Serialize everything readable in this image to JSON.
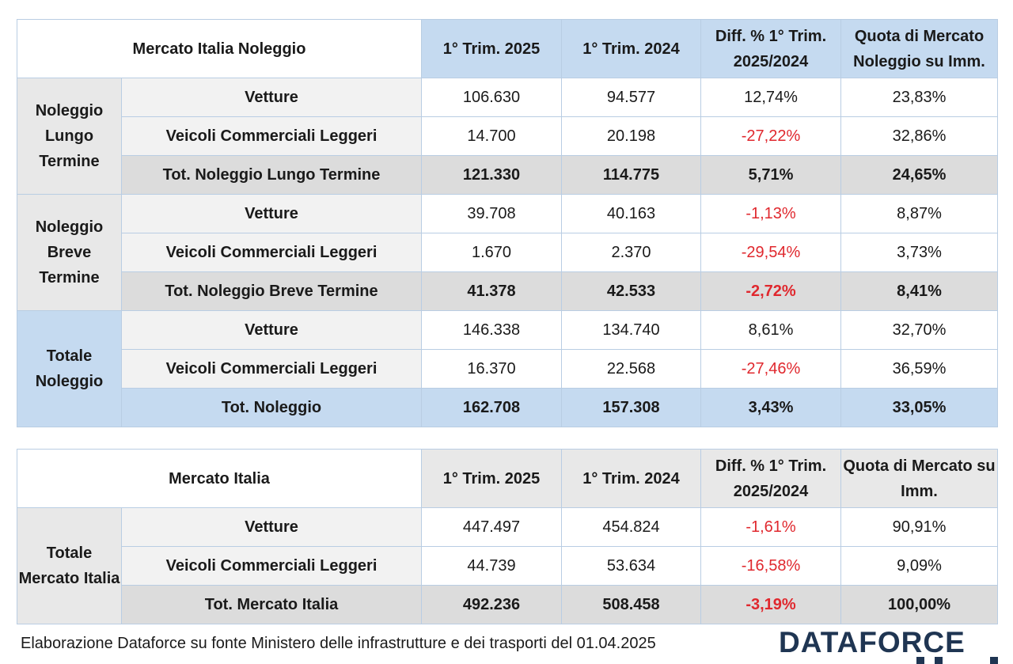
{
  "table1": {
    "title": "Mercato Italia Noleggio",
    "columns": [
      "1° Trim. 2025",
      "1° Trim. 2024",
      "Diff. % 1° Trim. 2025/2024",
      "Quota di Mercato Noleggio su Imm."
    ],
    "groups": [
      {
        "label": "Noleggio Lungo Termine",
        "rows": [
          {
            "label": "Vetture",
            "v2025": "106.630",
            "v2024": "94.577",
            "diff": "12,74%",
            "quota": "23,83%"
          },
          {
            "label": "Veicoli Commerciali Leggeri",
            "v2025": "14.700",
            "v2024": "20.198",
            "diff": "-27,22%",
            "quota": "32,86%"
          },
          {
            "label": "Tot. Noleggio Lungo Termine",
            "v2025": "121.330",
            "v2024": "114.775",
            "diff": "5,71%",
            "quota": "24,65%"
          }
        ]
      },
      {
        "label": "Noleggio Breve Termine",
        "rows": [
          {
            "label": "Vetture",
            "v2025": "39.708",
            "v2024": "40.163",
            "diff": "-1,13%",
            "quota": "8,87%"
          },
          {
            "label": "Veicoli Commerciali Leggeri",
            "v2025": "1.670",
            "v2024": "2.370",
            "diff": "-29,54%",
            "quota": "3,73%"
          },
          {
            "label": "Tot. Noleggio Breve Termine",
            "v2025": "41.378",
            "v2024": "42.533",
            "diff": "-2,72%",
            "quota": "8,41%"
          }
        ]
      },
      {
        "label": "Totale Noleggio",
        "rows": [
          {
            "label": "Vetture",
            "v2025": "146.338",
            "v2024": "134.740",
            "diff": "8,61%",
            "quota": "32,70%"
          },
          {
            "label": "Veicoli Commerciali Leggeri",
            "v2025": "16.370",
            "v2024": "22.568",
            "diff": "-27,46%",
            "quota": "36,59%"
          },
          {
            "label": "Tot. Noleggio",
            "v2025": "162.708",
            "v2024": "157.308",
            "diff": "3,43%",
            "quota": "33,05%"
          }
        ]
      }
    ]
  },
  "table2": {
    "title": "Mercato Italia",
    "columns": [
      "1° Trim. 2025",
      "1° Trim. 2024",
      "Diff. % 1° Trim. 2025/2024",
      "Quota di Mercato su Imm."
    ],
    "groups": [
      {
        "label": "Totale Mercato Italia",
        "rows": [
          {
            "label": "Vetture",
            "v2025": "447.497",
            "v2024": "454.824",
            "diff": "-1,61%",
            "quota": "90,91%"
          },
          {
            "label": "Veicoli Commerciali Leggeri",
            "v2025": "44.739",
            "v2024": "53.634",
            "diff": "-16,58%",
            "quota": "9,09%"
          },
          {
            "label": "Tot. Mercato Italia",
            "v2025": "492.236",
            "v2024": "508.458",
            "diff": "-3,19%",
            "quota": "100,00%"
          }
        ]
      }
    ]
  },
  "footer": {
    "source": "Elaborazione Dataforce su fonte Ministero delle infrastrutture e dei trasporti del 01.04.2025",
    "logo_text": "DATAFORCE"
  },
  "colors": {
    "header_blue": "#c5daf0",
    "negative_red": "#e0282e",
    "logo_navy": "#1f3552"
  }
}
